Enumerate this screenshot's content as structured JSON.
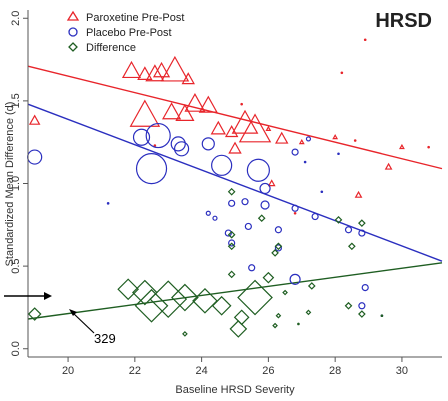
{
  "chart_data": {
    "type": "scatter",
    "title": "HRSD",
    "xlabel": "Baseline HRSD Severity",
    "ylabel": "Standardized Mean Difference (d)",
    "xlim": [
      18.8,
      31.2
    ],
    "ylim": [
      -0.05,
      2.05
    ],
    "xticks": [
      "20",
      "22",
      "24",
      "26",
      "28",
      "30"
    ],
    "yticks": [
      "0.0",
      "0.5",
      "1.0",
      "1.5",
      "2.0"
    ],
    "grid": false,
    "legend_position": "top-left",
    "colors": {
      "paroxetine": "#e8252b",
      "placebo": "#2b2fbf",
      "difference": "#1f5e22",
      "axis": "#555555"
    },
    "series": [
      {
        "name": "Paroxetine Pre-Post",
        "marker": "triangle",
        "points": [
          {
            "x": 19.0,
            "y": 1.38,
            "s": 5
          },
          {
            "x": 21.9,
            "y": 1.68,
            "s": 9
          },
          {
            "x": 22.3,
            "y": 1.66,
            "s": 7
          },
          {
            "x": 22.6,
            "y": 1.66,
            "s": 9
          },
          {
            "x": 22.8,
            "y": 1.68,
            "s": 8
          },
          {
            "x": 23.2,
            "y": 1.68,
            "s": 14
          },
          {
            "x": 23.6,
            "y": 1.63,
            "s": 6
          },
          {
            "x": 22.3,
            "y": 1.41,
            "s": 15
          },
          {
            "x": 23.1,
            "y": 1.43,
            "s": 9
          },
          {
            "x": 23.5,
            "y": 1.42,
            "s": 9
          },
          {
            "x": 23.8,
            "y": 1.48,
            "s": 10
          },
          {
            "x": 24.2,
            "y": 1.47,
            "s": 9
          },
          {
            "x": 24.5,
            "y": 1.33,
            "s": 7
          },
          {
            "x": 24.9,
            "y": 1.31,
            "s": 6
          },
          {
            "x": 25.3,
            "y": 1.36,
            "s": 13
          },
          {
            "x": 25.6,
            "y": 1.32,
            "s": 16
          },
          {
            "x": 26.4,
            "y": 1.27,
            "s": 6
          },
          {
            "x": 25.0,
            "y": 1.21,
            "s": 6
          },
          {
            "x": 26.1,
            "y": 1.0,
            "s": 3
          },
          {
            "x": 28.0,
            "y": 1.28,
            "s": 2
          },
          {
            "x": 28.7,
            "y": 0.93,
            "s": 3
          },
          {
            "x": 29.6,
            "y": 1.1,
            "s": 3
          },
          {
            "x": 30.0,
            "y": 1.22,
            "s": 2
          },
          {
            "x": 26.0,
            "y": 1.33,
            "s": 2
          },
          {
            "x": 27.0,
            "y": 1.25,
            "s": 2
          }
        ],
        "dots": [
          {
            "x": 28.2,
            "y": 1.67
          },
          {
            "x": 28.9,
            "y": 1.87
          },
          {
            "x": 30.8,
            "y": 1.22
          },
          {
            "x": 28.6,
            "y": 1.26
          },
          {
            "x": 25.2,
            "y": 1.48
          },
          {
            "x": 22.6,
            "y": 1.23
          },
          {
            "x": 26.8,
            "y": 0.82
          }
        ]
      },
      {
        "name": "Placebo Pre-Post",
        "marker": "circle",
        "points": [
          {
            "x": 19.0,
            "y": 1.16,
            "s": 7
          },
          {
            "x": 22.2,
            "y": 1.28,
            "s": 8
          },
          {
            "x": 22.7,
            "y": 1.29,
            "s": 12
          },
          {
            "x": 23.3,
            "y": 1.24,
            "s": 7
          },
          {
            "x": 23.4,
            "y": 1.21,
            "s": 7
          },
          {
            "x": 22.5,
            "y": 1.09,
            "s": 15
          },
          {
            "x": 24.6,
            "y": 1.11,
            "s": 10
          },
          {
            "x": 25.7,
            "y": 1.08,
            "s": 11
          },
          {
            "x": 24.2,
            "y": 1.24,
            "s": 6
          },
          {
            "x": 24.9,
            "y": 0.88,
            "s": 3
          },
          {
            "x": 25.3,
            "y": 0.89,
            "s": 3
          },
          {
            "x": 25.9,
            "y": 0.97,
            "s": 5
          },
          {
            "x": 25.9,
            "y": 0.87,
            "s": 4
          },
          {
            "x": 26.8,
            "y": 1.19,
            "s": 3
          },
          {
            "x": 26.8,
            "y": 0.85,
            "s": 3
          },
          {
            "x": 24.8,
            "y": 0.7,
            "s": 3
          },
          {
            "x": 24.9,
            "y": 0.64,
            "s": 3
          },
          {
            "x": 25.4,
            "y": 0.74,
            "s": 3
          },
          {
            "x": 26.3,
            "y": 0.72,
            "s": 3
          },
          {
            "x": 26.3,
            "y": 0.61,
            "s": 3
          },
          {
            "x": 27.4,
            "y": 0.8,
            "s": 3
          },
          {
            "x": 28.4,
            "y": 0.72,
            "s": 3
          },
          {
            "x": 28.8,
            "y": 0.7,
            "s": 3
          },
          {
            "x": 26.8,
            "y": 0.42,
            "s": 5
          },
          {
            "x": 25.5,
            "y": 0.49,
            "s": 3
          },
          {
            "x": 28.9,
            "y": 0.37,
            "s": 3
          },
          {
            "x": 28.8,
            "y": 0.26,
            "s": 3
          },
          {
            "x": 24.4,
            "y": 0.79,
            "s": 2
          },
          {
            "x": 24.2,
            "y": 0.82,
            "s": 2
          },
          {
            "x": 27.2,
            "y": 1.27,
            "s": 2
          }
        ],
        "dots": [
          {
            "x": 21.2,
            "y": 0.88
          },
          {
            "x": 27.6,
            "y": 0.95
          },
          {
            "x": 28.1,
            "y": 1.18
          },
          {
            "x": 27.1,
            "y": 1.13
          },
          {
            "x": 29.4,
            "y": 0.2
          }
        ]
      },
      {
        "name": "Difference",
        "marker": "diamond",
        "points": [
          {
            "x": 19.0,
            "y": 0.21,
            "s": 6
          },
          {
            "x": 21.8,
            "y": 0.36,
            "s": 10
          },
          {
            "x": 22.3,
            "y": 0.34,
            "s": 12
          },
          {
            "x": 22.5,
            "y": 0.26,
            "s": 16
          },
          {
            "x": 23.0,
            "y": 0.3,
            "s": 18
          },
          {
            "x": 23.5,
            "y": 0.31,
            "s": 13
          },
          {
            "x": 24.1,
            "y": 0.29,
            "s": 12
          },
          {
            "x": 24.6,
            "y": 0.26,
            "s": 9
          },
          {
            "x": 25.2,
            "y": 0.19,
            "s": 7
          },
          {
            "x": 25.6,
            "y": 0.31,
            "s": 17
          },
          {
            "x": 26.0,
            "y": 0.43,
            "s": 5
          },
          {
            "x": 26.2,
            "y": 0.58,
            "s": 3
          },
          {
            "x": 26.3,
            "y": 0.62,
            "s": 3
          },
          {
            "x": 25.1,
            "y": 0.12,
            "s": 8
          },
          {
            "x": 24.9,
            "y": 0.45,
            "s": 3
          },
          {
            "x": 24.9,
            "y": 0.69,
            "s": 3
          },
          {
            "x": 24.9,
            "y": 0.62,
            "s": 3
          },
          {
            "x": 24.9,
            "y": 0.95,
            "s": 3
          },
          {
            "x": 25.8,
            "y": 0.79,
            "s": 3
          },
          {
            "x": 28.1,
            "y": 0.78,
            "s": 3
          },
          {
            "x": 28.8,
            "y": 0.76,
            "s": 3
          },
          {
            "x": 28.5,
            "y": 0.62,
            "s": 3
          },
          {
            "x": 28.4,
            "y": 0.26,
            "s": 3
          },
          {
            "x": 28.8,
            "y": 0.21,
            "s": 3
          },
          {
            "x": 27.3,
            "y": 0.38,
            "s": 3
          },
          {
            "x": 26.3,
            "y": 0.2,
            "s": 2
          },
          {
            "x": 26.5,
            "y": 0.34,
            "s": 2
          },
          {
            "x": 27.2,
            "y": 0.22,
            "s": 2
          },
          {
            "x": 26.2,
            "y": 0.14,
            "s": 2
          },
          {
            "x": 23.5,
            "y": 0.09,
            "s": 2
          }
        ],
        "dots": [
          {
            "x": 26.9,
            "y": 0.15
          },
          {
            "x": 29.4,
            "y": 0.2
          }
        ]
      }
    ],
    "fit_lines": [
      {
        "series": "Paroxetine Pre-Post",
        "from": [
          18.8,
          1.71
        ],
        "to": [
          31.2,
          1.09
        ]
      },
      {
        "series": "Placebo Pre-Post",
        "from": [
          18.8,
          1.48
        ],
        "to": [
          31.2,
          0.53
        ]
      },
      {
        "series": "Difference",
        "from": [
          18.8,
          0.18
        ],
        "to": [
          31.2,
          0.52
        ]
      }
    ],
    "annotations": [
      {
        "text": "329",
        "target": {
          "x": 19.0,
          "y": 0.21
        }
      }
    ]
  }
}
